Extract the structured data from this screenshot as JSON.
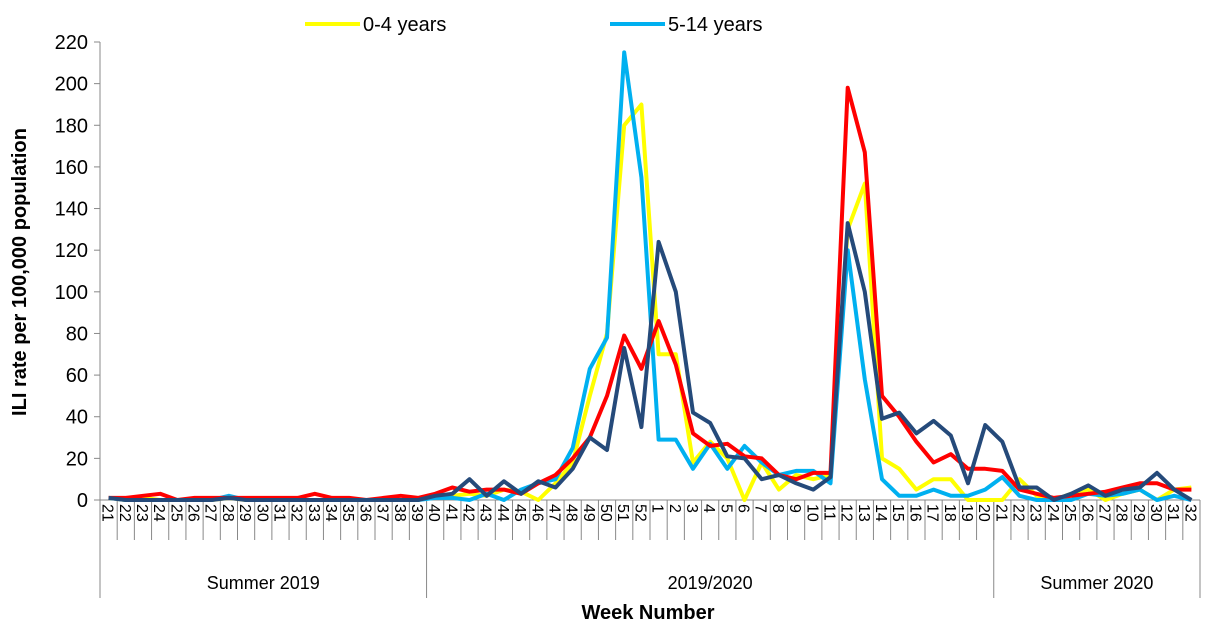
{
  "chart_data": {
    "type": "line",
    "y_label": "ILI rate per 100,000 population",
    "x_label": "Week Number",
    "category_groups": [
      {
        "label": "Summer 2019",
        "categories": [
          "21",
          "22",
          "23",
          "24",
          "25",
          "26",
          "27",
          "28",
          "29",
          "30",
          "31",
          "32",
          "33",
          "34",
          "35",
          "36",
          "37",
          "38",
          "39"
        ]
      },
      {
        "label": "2019/2020",
        "categories": [
          "40",
          "41",
          "42",
          "43",
          "44",
          "45",
          "46",
          "47",
          "48",
          "49",
          "50",
          "51",
          "52",
          "1",
          "2",
          "3",
          "4",
          "5",
          "6",
          "7",
          "8",
          "9",
          "10",
          "11",
          "12",
          "13",
          "14",
          "15",
          "16",
          "17",
          "18",
          "19",
          "20"
        ]
      },
      {
        "label": "Summer 2020",
        "categories": [
          "21",
          "22",
          "23",
          "24",
          "25",
          "26",
          "27",
          "28",
          "29",
          "30",
          "31",
          "32"
        ]
      }
    ],
    "series": [
      {
        "name": "0-4 years",
        "color": "#ffff00",
        "values": [
          1,
          0,
          1,
          0,
          0,
          0,
          0,
          1,
          0,
          0,
          0,
          0,
          0,
          0,
          0,
          0,
          0,
          0,
          0,
          2,
          2,
          3,
          2,
          5,
          4,
          0,
          8,
          18,
          50,
          80,
          180,
          190,
          70,
          70,
          18,
          28,
          20,
          0,
          18,
          5,
          12,
          10,
          12,
          130,
          152,
          20,
          15,
          5,
          10,
          10,
          0,
          0,
          0,
          10,
          2,
          0,
          3,
          5,
          0,
          3,
          5,
          0,
          5,
          6
        ]
      },
      {
        "name": "5-14 years",
        "color": "#00b0f0",
        "values": [
          1,
          0,
          0,
          0,
          0,
          0,
          0,
          2,
          0,
          0,
          0,
          0,
          0,
          0,
          0,
          0,
          0,
          0,
          0,
          1,
          1,
          0,
          3,
          0,
          5,
          8,
          10,
          25,
          63,
          78,
          215,
          155,
          29,
          29,
          15,
          27,
          15,
          26,
          18,
          12,
          14,
          14,
          8,
          120,
          58,
          10,
          2,
          2,
          5,
          2,
          2,
          5,
          11,
          2,
          0,
          0,
          0,
          3,
          2,
          3,
          5,
          0,
          2,
          0
        ]
      },
      {
        "color": "#ff0000",
        "values": [
          1,
          1,
          2,
          3,
          0,
          1,
          1,
          1,
          1,
          1,
          1,
          1,
          3,
          1,
          1,
          0,
          1,
          2,
          1,
          3,
          6,
          4,
          5,
          5,
          3,
          8,
          12,
          20,
          30,
          50,
          79,
          63,
          86,
          65,
          32,
          26,
          27,
          21,
          20,
          12,
          10,
          13,
          13,
          198,
          167,
          50,
          40,
          28,
          18,
          22,
          15,
          15,
          14,
          5,
          3,
          1,
          2,
          3,
          4,
          6,
          8,
          8,
          5,
          5
        ]
      },
      {
        "color": "#254a7a",
        "values": [
          1,
          0,
          0,
          0,
          0,
          0,
          0,
          1,
          0,
          0,
          0,
          0,
          0,
          0,
          0,
          0,
          0,
          0,
          0,
          2,
          3,
          10,
          2,
          9,
          3,
          9,
          6,
          15,
          30,
          24,
          73,
          35,
          124,
          100,
          42,
          37,
          21,
          20,
          10,
          12,
          8,
          5,
          11,
          133,
          100,
          39,
          42,
          32,
          38,
          31,
          8,
          36,
          28,
          6,
          6,
          0,
          3,
          7,
          2,
          5,
          6,
          13,
          5,
          0
        ]
      }
    ],
    "ylim": [
      0,
      220
    ],
    "yticks": [
      0,
      20,
      40,
      60,
      80,
      100,
      120,
      140,
      160,
      180,
      200,
      220
    ]
  }
}
